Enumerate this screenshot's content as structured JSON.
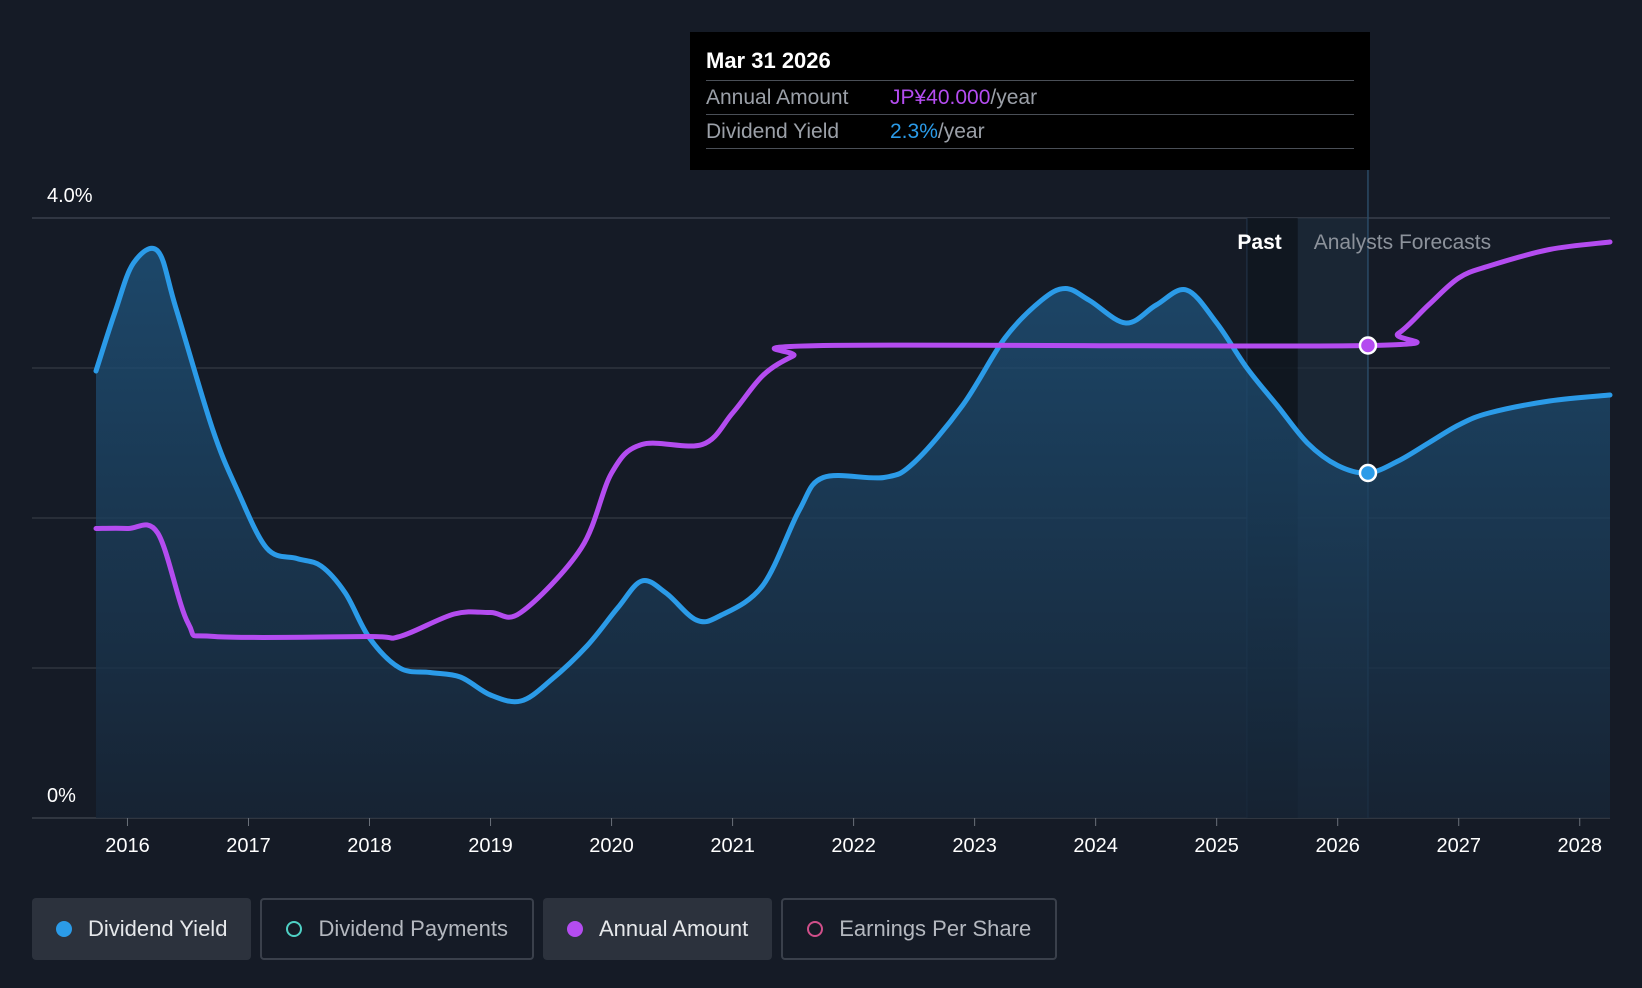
{
  "tooltip": {
    "date": "Mar 31 2026",
    "rows": [
      {
        "label": "Annual Amount",
        "value": "JP¥40.000",
        "unit": "/year"
      },
      {
        "label": "Dividend Yield",
        "value": "2.3%",
        "unit": "/year"
      }
    ]
  },
  "legend": [
    {
      "label": "Dividend Yield",
      "color": "#2b9be8",
      "filled": true,
      "active": true
    },
    {
      "label": "Dividend Payments",
      "color": "#4fd1c5",
      "filled": false,
      "active": false
    },
    {
      "label": "Annual Amount",
      "color": "#b44cf0",
      "filled": true,
      "active": true
    },
    {
      "label": "Earnings Per Share",
      "color": "#d04f8a",
      "filled": false,
      "active": false
    }
  ],
  "colors": {
    "background": "#151b26",
    "yield": "#2b9be8",
    "annual": "#b44cf0",
    "grid": "#3a404b"
  },
  "chart_data": {
    "type": "line",
    "y_axis": {
      "min": 0,
      "max": 4.0,
      "tick_labels": [
        "4.0%",
        "0%"
      ]
    },
    "x_axis": {
      "min": 2015.74,
      "max": 2028.25,
      "tick_labels": [
        "2016",
        "2017",
        "2018",
        "2019",
        "2020",
        "2021",
        "2022",
        "2023",
        "2024",
        "2025",
        "2026",
        "2027",
        "2028"
      ]
    },
    "regions": {
      "past_label": "Past",
      "forecast_label": "Analysts Forecasts",
      "past_start": 2025.25,
      "forecast_start": 2025.67,
      "forecast_end": 2026.25
    },
    "highlight_x": 2026.25,
    "series": [
      {
        "name": "Dividend Yield",
        "key": "yield",
        "points": [
          [
            2015.74,
            2.98
          ],
          [
            2015.9,
            3.38
          ],
          [
            2016.05,
            3.7
          ],
          [
            2016.25,
            3.78
          ],
          [
            2016.4,
            3.4
          ],
          [
            2016.7,
            2.6
          ],
          [
            2016.9,
            2.2
          ],
          [
            2017.15,
            1.8
          ],
          [
            2017.4,
            1.73
          ],
          [
            2017.6,
            1.68
          ],
          [
            2017.8,
            1.5
          ],
          [
            2018.0,
            1.2
          ],
          [
            2018.25,
            1.0
          ],
          [
            2018.5,
            0.97
          ],
          [
            2018.75,
            0.94
          ],
          [
            2019.0,
            0.82
          ],
          [
            2019.25,
            0.78
          ],
          [
            2019.5,
            0.92
          ],
          [
            2019.8,
            1.15
          ],
          [
            2020.05,
            1.4
          ],
          [
            2020.25,
            1.58
          ],
          [
            2020.45,
            1.5
          ],
          [
            2020.7,
            1.32
          ],
          [
            2020.9,
            1.35
          ],
          [
            2021.25,
            1.55
          ],
          [
            2021.55,
            2.05
          ],
          [
            2021.75,
            2.27
          ],
          [
            2022.25,
            2.27
          ],
          [
            2022.5,
            2.37
          ],
          [
            2022.9,
            2.75
          ],
          [
            2023.25,
            3.2
          ],
          [
            2023.55,
            3.45
          ],
          [
            2023.75,
            3.53
          ],
          [
            2023.95,
            3.45
          ],
          [
            2024.25,
            3.3
          ],
          [
            2024.5,
            3.42
          ],
          [
            2024.75,
            3.52
          ],
          [
            2025.0,
            3.3
          ],
          [
            2025.25,
            3.0
          ],
          [
            2025.5,
            2.75
          ],
          [
            2025.75,
            2.5
          ],
          [
            2026.0,
            2.35
          ],
          [
            2026.25,
            2.3
          ],
          [
            2026.5,
            2.38
          ],
          [
            2026.75,
            2.5
          ],
          [
            2027.0,
            2.62
          ],
          [
            2027.25,
            2.7
          ],
          [
            2027.75,
            2.78
          ],
          [
            2028.25,
            2.82
          ]
        ]
      },
      {
        "name": "Annual Amount",
        "key": "annual",
        "points": [
          [
            2015.74,
            1.93
          ],
          [
            2016.0,
            1.93
          ],
          [
            2016.25,
            1.9
          ],
          [
            2016.5,
            1.3
          ],
          [
            2016.72,
            1.21
          ],
          [
            2018.0,
            1.21
          ],
          [
            2018.25,
            1.21
          ],
          [
            2018.7,
            1.36
          ],
          [
            2019.0,
            1.37
          ],
          [
            2019.25,
            1.37
          ],
          [
            2019.75,
            1.8
          ],
          [
            2020.0,
            2.3
          ],
          [
            2020.25,
            2.49
          ],
          [
            2020.75,
            2.49
          ],
          [
            2021.0,
            2.7
          ],
          [
            2021.25,
            2.95
          ],
          [
            2021.5,
            3.08
          ],
          [
            2021.75,
            3.15
          ],
          [
            2026.25,
            3.15
          ],
          [
            2026.5,
            3.23
          ],
          [
            2026.75,
            3.42
          ],
          [
            2027.0,
            3.6
          ],
          [
            2027.25,
            3.68
          ],
          [
            2027.75,
            3.79
          ],
          [
            2028.25,
            3.84
          ]
        ]
      }
    ]
  }
}
